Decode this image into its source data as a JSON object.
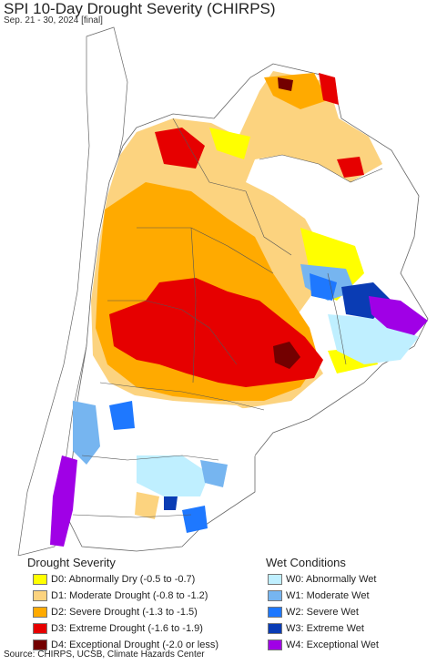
{
  "title": "SPI 10-Day Drought Severity (CHIRPS)",
  "subtitle": "Sep. 21 - 30, 2024 [final]",
  "legend_drought": {
    "heading": "Drought Severity",
    "items": [
      {
        "label": "D0: Abnormally Dry (-0.5 to -0.7)",
        "color": "#ffff00"
      },
      {
        "label": "D1: Moderate Drought (-0.8 to -1.2)",
        "color": "#fcd37f"
      },
      {
        "label": "D2: Severe Drought (-1.3 to -1.5)",
        "color": "#ffaa00"
      },
      {
        "label": "D3: Extreme Drought (-1.6 to -1.9)",
        "color": "#e60000"
      },
      {
        "label": "D4: Exceptional Drought (-2.0 or less)",
        "color": "#730000"
      }
    ]
  },
  "legend_wet": {
    "heading": "Wet Conditions",
    "items": [
      {
        "label": "W0: Abnormally Wet",
        "color": "#bfefff"
      },
      {
        "label": "W1: Moderate Wet",
        "color": "#76b5f0"
      },
      {
        "label": "W2: Severe Wet",
        "color": "#1e78ff"
      },
      {
        "label": "W3: Extreme Wet",
        "color": "#0a3cb4"
      },
      {
        "label": "W4: Exceptional Wet",
        "color": "#a000e6"
      }
    ]
  },
  "source": "Source: CHIRPS, UCSB, Climate Hazards Center"
}
